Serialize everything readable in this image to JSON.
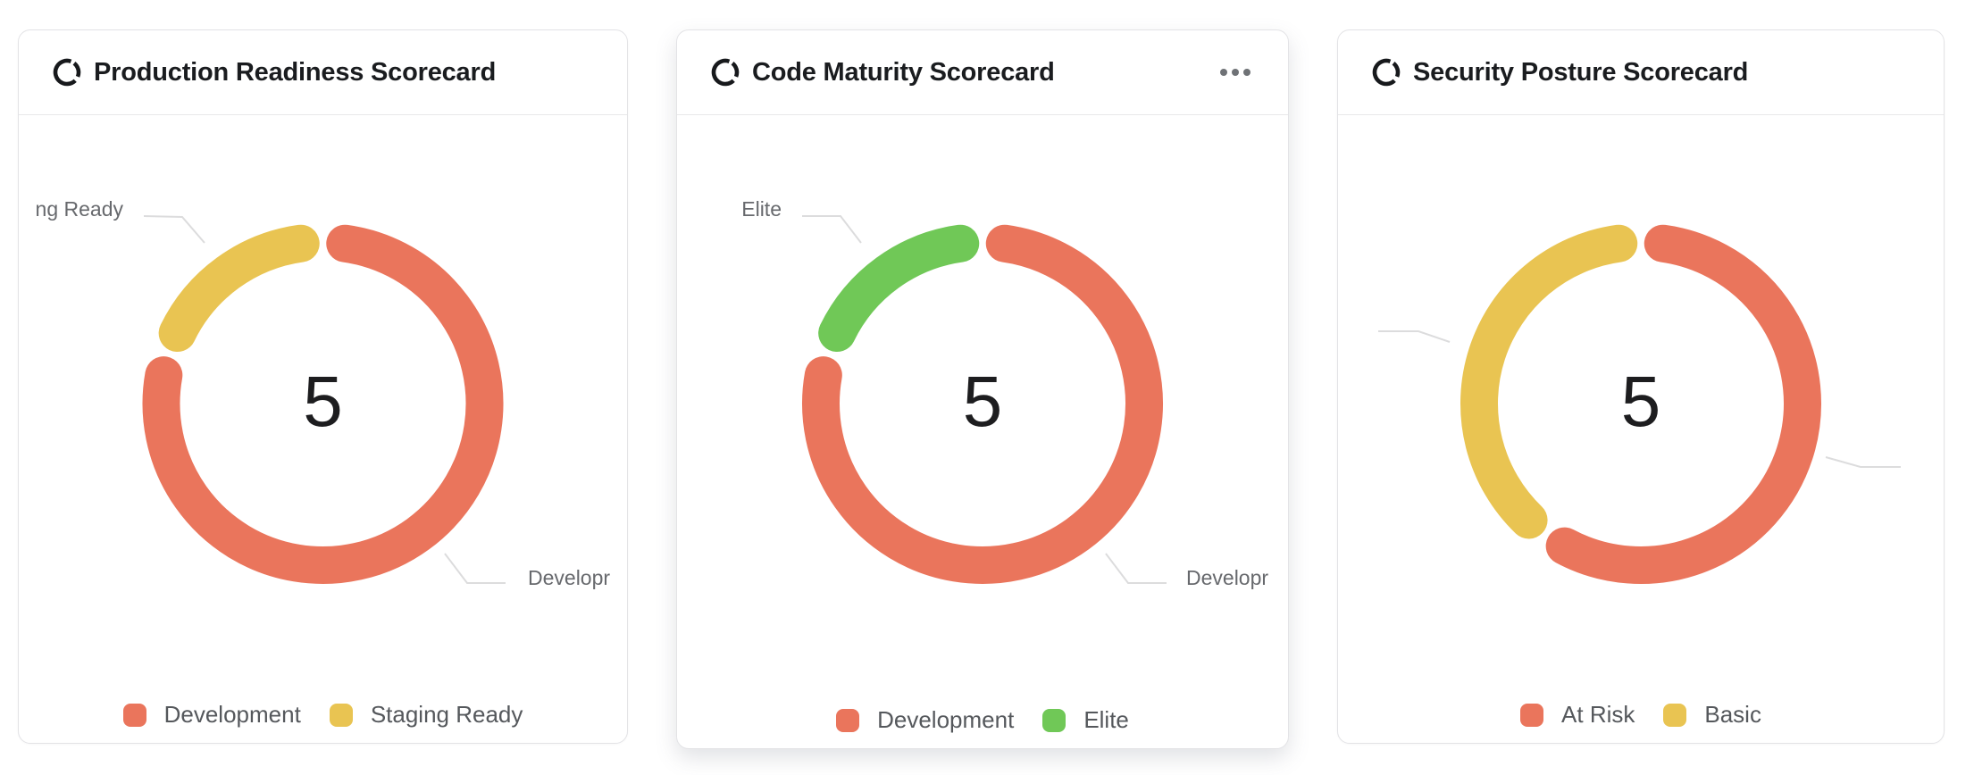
{
  "page": {
    "background": "#ffffff"
  },
  "colors": {
    "red": "#ea755c",
    "yellow": "#e9c452",
    "green": "#70c857",
    "leader_line": "#dcdcdd",
    "callout_text": "#67696d",
    "legend_text": "#55585c",
    "title_text": "#1a1c1f",
    "center_value_text": "#1d1d1f"
  },
  "icons": {
    "title_icon": "scorecard-ring-icon",
    "card2_menu_icon": "ellipsis-icon"
  },
  "cards": [
    {
      "title": "Production Readiness Scorecard",
      "center_value": "5",
      "callouts": {
        "left": "ng Ready",
        "right": "Developr"
      },
      "legend": [
        {
          "label": "Development",
          "color": "#ea755c"
        },
        {
          "label": "Staging Ready",
          "color": "#e9c452"
        }
      ]
    },
    {
      "title": "Code Maturity Scorecard",
      "center_value": "5",
      "callouts": {
        "left": "Elite",
        "right": "Developr"
      },
      "legend": [
        {
          "label": "Development",
          "color": "#ea755c"
        },
        {
          "label": "Elite",
          "color": "#70c857"
        }
      ]
    },
    {
      "title": "Security Posture Scorecard",
      "center_value": "5",
      "callouts": {
        "left": "",
        "right": ""
      },
      "legend": [
        {
          "label": "At Risk",
          "color": "#ea755c"
        },
        {
          "label": "Basic",
          "color": "#e9c452"
        }
      ]
    }
  ],
  "chart_data": [
    {
      "type": "pie",
      "subtype": "donut",
      "title": "Production Readiness Scorecard",
      "center_label": 5,
      "legend_position": "bottom",
      "series": [
        {
          "name": "Development",
          "value": 4,
          "color": "#ea755c"
        },
        {
          "name": "Staging Ready",
          "value": 1,
          "color": "#e9c452"
        }
      ]
    },
    {
      "type": "pie",
      "subtype": "donut",
      "title": "Code Maturity Scorecard",
      "center_label": 5,
      "legend_position": "bottom",
      "series": [
        {
          "name": "Development",
          "value": 4,
          "color": "#ea755c"
        },
        {
          "name": "Elite",
          "value": 1,
          "color": "#70c857"
        }
      ]
    },
    {
      "type": "pie",
      "subtype": "donut",
      "title": "Security Posture Scorecard",
      "center_label": 5,
      "legend_position": "bottom",
      "series": [
        {
          "name": "At Risk",
          "value": 3,
          "color": "#ea755c"
        },
        {
          "name": "Basic",
          "value": 2,
          "color": "#e9c452"
        }
      ]
    }
  ]
}
